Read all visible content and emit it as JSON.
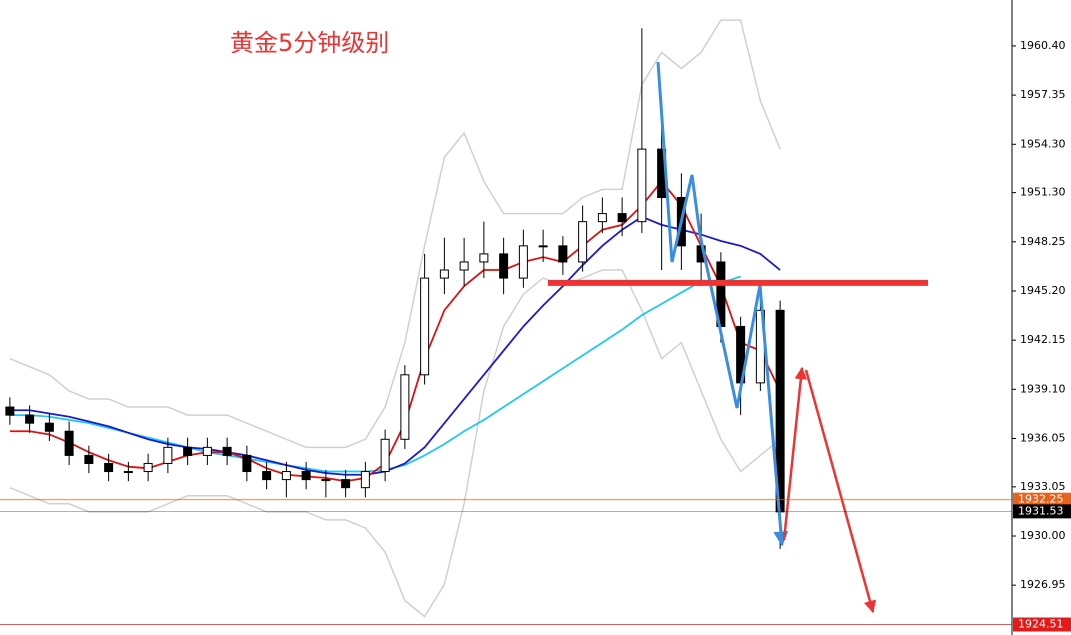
{
  "chart_data": {
    "type": "candlestick",
    "title": "黄金5分钟级别",
    "ylim": [
      1923.86,
      1963.25
    ],
    "yticks": [
      {
        "value": 1960.4,
        "label": "1960.40"
      },
      {
        "value": 1957.35,
        "label": "1957.35"
      },
      {
        "value": 1954.3,
        "label": "1954.30"
      },
      {
        "value": 1951.3,
        "label": "1951.30"
      },
      {
        "value": 1948.25,
        "label": "1948.25"
      },
      {
        "value": 1945.2,
        "label": "1945.20"
      },
      {
        "value": 1942.15,
        "label": "1942.15"
      },
      {
        "value": 1939.1,
        "label": "1939.10"
      },
      {
        "value": 1936.05,
        "label": "1936.05"
      },
      {
        "value": 1933.05,
        "label": "1933.05"
      },
      {
        "value": 1930,
        "label": "1930.00"
      },
      {
        "value": 1926.95,
        "label": "1926.95"
      }
    ],
    "candles": {
      "open": [
        1938,
        1937.5,
        1937,
        1936.5,
        1935,
        1934.5,
        1934,
        1934,
        1934.5,
        1935.5,
        1935,
        1935.5,
        1935,
        1934,
        1933.5,
        1934,
        1933.5,
        1933.5,
        1933,
        1934,
        1936,
        1940,
        1946,
        1946.5,
        1947,
        1947.5,
        1946,
        1948,
        1948,
        1947,
        1949.5,
        1950,
        1949.5,
        1954,
        1951,
        1948,
        1947,
        1943,
        1939.5,
        1944
      ],
      "high": [
        1938.6,
        1938.1,
        1937.6,
        1937.1,
        1935.6,
        1935.1,
        1934.6,
        1935.1,
        1936.1,
        1936.1,
        1936.1,
        1936.1,
        1935.6,
        1934.6,
        1934.6,
        1934.6,
        1934.1,
        1934.1,
        1934.6,
        1936.6,
        1940.6,
        1947.5,
        1948.5,
        1948.5,
        1949.5,
        1948.5,
        1949,
        1949,
        1948.6,
        1950.5,
        1951,
        1951,
        1961.5,
        1957,
        1952.5,
        1950,
        1947.6,
        1943.6,
        1945.5,
        1944.6
      ],
      "low": [
        1936.9,
        1936.4,
        1935.9,
        1934.4,
        1933.9,
        1933.4,
        1933.4,
        1933.4,
        1933.9,
        1934.4,
        1934.4,
        1934.4,
        1933.4,
        1932.9,
        1932.4,
        1932.9,
        1932.4,
        1932.4,
        1932.4,
        1933.4,
        1935.4,
        1939.4,
        1945,
        1945.5,
        1946,
        1945,
        1945.4,
        1947,
        1946.2,
        1946.4,
        1948.8,
        1948.6,
        1948.8,
        1946.5,
        1946.5,
        1945.5,
        1942,
        1937.5,
        1939,
        1929.2
      ],
      "close": [
        1937.5,
        1937,
        1936.5,
        1935,
        1934.5,
        1934,
        1934,
        1934.5,
        1935.5,
        1935,
        1935.5,
        1935,
        1934,
        1933.5,
        1934,
        1933.5,
        1933.5,
        1933,
        1934,
        1936,
        1940,
        1946,
        1946.5,
        1947,
        1947.5,
        1946,
        1948,
        1948,
        1947,
        1949.5,
        1950,
        1949.5,
        1954,
        1951,
        1948,
        1947,
        1943,
        1939.5,
        1944,
        1931.5
      ]
    },
    "series": [
      {
        "color": "#d0d0d0",
        "values": [
          1941,
          1940.5,
          1940,
          1939,
          1938.5,
          1938.5,
          1938,
          1938,
          1938,
          1937.5,
          1937.5,
          1937.5,
          1937,
          1936.5,
          1936,
          1935.5,
          1935.5,
          1935.5,
          1936,
          1938,
          1942,
          1948,
          1953.5,
          1955,
          1952,
          1950,
          1950,
          1950,
          1950,
          1951,
          1951.5,
          1951.5,
          1958,
          1960,
          1959,
          1960,
          1962,
          1962,
          1957,
          1954
        ]
      },
      {
        "color": "#d0d0d0",
        "values": [
          1933,
          1932.5,
          1932,
          1932,
          1931.5,
          1931.5,
          1931.5,
          1931.5,
          1932,
          1932.5,
          1932.5,
          1932.5,
          1932,
          1931.5,
          1931.5,
          1931.5,
          1931,
          1931,
          1930.5,
          1929,
          1926,
          1925,
          1927,
          1932,
          1939,
          1943,
          1945,
          1946,
          1945.5,
          1946,
          1946.5,
          1946.5,
          1944,
          1941,
          1942,
          1939,
          1936,
          1934,
          1935,
          1936
        ]
      },
      {
        "color": "#1ec8f0",
        "values": [
          1937.5,
          1937.5,
          1937.4,
          1937.2,
          1937,
          1936.7,
          1936.4,
          1936.1,
          1935.8,
          1935.5,
          1935.2,
          1935,
          1934.8,
          1934.6,
          1934.4,
          1934.2,
          1934,
          1934,
          1934,
          1934.1,
          1934.4,
          1935,
          1935.7,
          1936.5,
          1937.2,
          1938,
          1938.8,
          1939.6,
          1940.4,
          1941.2,
          1942,
          1942.8,
          1943.7,
          1944.4,
          1945.1,
          1945.8,
          1945.7,
          1946.1,
          null,
          null
        ]
      },
      {
        "color": "#1a1ad0",
        "values": [
          1937.8,
          1937.8,
          1937.6,
          1937.4,
          1937.1,
          1936.8,
          1936.4,
          1936,
          1935.7,
          1935.5,
          1935.4,
          1935.2,
          1935,
          1934.7,
          1934.4,
          1934.1,
          1933.9,
          1933.8,
          1933.8,
          1934,
          1934.5,
          1935.5,
          1937,
          1938.5,
          1940,
          1941.5,
          1943,
          1944.3,
          1945.5,
          1946.8,
          1948,
          1949,
          1949.8,
          1949.3,
          1949,
          1948.7,
          1948.3,
          1948,
          1947.5,
          1946.5
        ]
      },
      {
        "color": "#dd1111",
        "values": [
          1936.5,
          1936.5,
          1936.3,
          1935.8,
          1935.2,
          1934.7,
          1934.3,
          1934.2,
          1934.6,
          1935,
          1935.2,
          1935.2,
          1934.8,
          1934.2,
          1933.8,
          1933.7,
          1933.6,
          1933.4,
          1933.6,
          1934.5,
          1937,
          1941,
          1944,
          1945.5,
          1946.5,
          1946.5,
          1947,
          1947.3,
          1947,
          1948,
          1949,
          1949.3,
          1950.5,
          1952,
          1950.5,
          1948,
          1945.5,
          1942,
          1941.5,
          1939
        ]
      }
    ],
    "level_line": {
      "value": 1945.7,
      "color": "#ee3333"
    },
    "price_lines": [
      {
        "value": 1932.25,
        "label": "1932.25",
        "color": "#e8621c"
      },
      {
        "value": 1931.53,
        "label": "1931.53",
        "color": "#000000"
      },
      {
        "value": 1924.51,
        "label": "1924.51",
        "color": "#e81818"
      }
    ]
  }
}
